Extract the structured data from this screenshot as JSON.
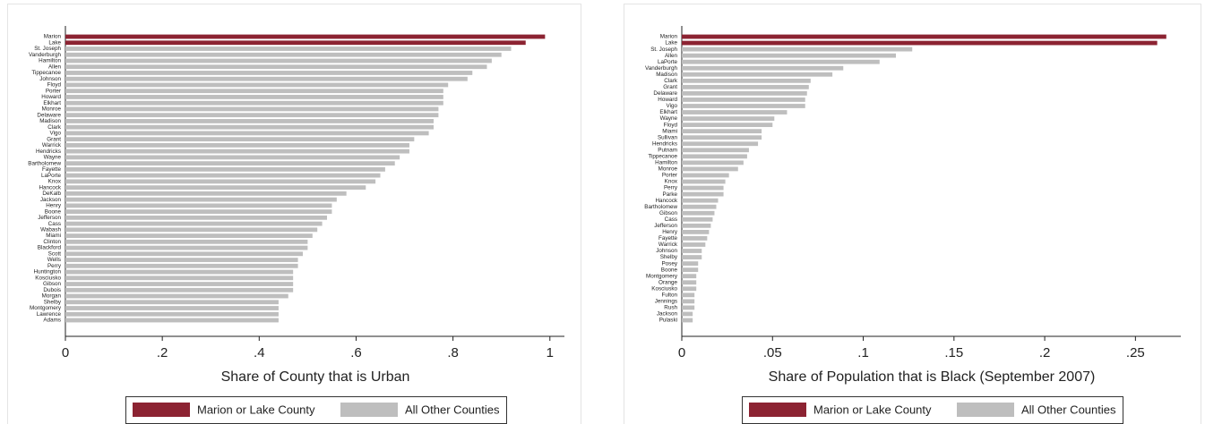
{
  "chart_data": [
    {
      "type": "hbar",
      "xlabel": "Share of County that is Urban",
      "categories": [
        "Marion",
        "Lake",
        "St. Joseph",
        "Vanderburgh",
        "Hamilton",
        "Allen",
        "Tippecanoe",
        "Johnson",
        "Floyd",
        "Porter",
        "Howard",
        "Elkhart",
        "Monroe",
        "Delaware",
        "Madison",
        "Clark",
        "Vigo",
        "Grant",
        "Warrick",
        "Hendricks",
        "Wayne",
        "Bartholomew",
        "Fayette",
        "LaPorte",
        "Knox",
        "Hancock",
        "DeKalb",
        "Jackson",
        "Henry",
        "Boone",
        "Jefferson",
        "Cass",
        "Wabash",
        "Miami",
        "Clinton",
        "Blackford",
        "Scott",
        "Wells",
        "Perry",
        "Huntington",
        "Kosciusko",
        "Gibson",
        "Dubois",
        "Morgan",
        "Shelby",
        "Montgomery",
        "Lawrence",
        "Adams"
      ],
      "series": [
        {
          "name": "Marion or Lake County",
          "color": "#8c2332",
          "values": [
            0.99,
            0.95,
            null,
            null,
            null,
            null,
            null,
            null,
            null,
            null,
            null,
            null,
            null,
            null,
            null,
            null,
            null,
            null,
            null,
            null,
            null,
            null,
            null,
            null,
            null,
            null,
            null,
            null,
            null,
            null,
            null,
            null,
            null,
            null,
            null,
            null,
            null,
            null,
            null,
            null,
            null,
            null,
            null,
            null,
            null,
            null,
            null,
            null
          ]
        },
        {
          "name": "All Other Counties",
          "color": "#bebebe",
          "values": [
            null,
            null,
            0.92,
            0.9,
            0.88,
            0.87,
            0.84,
            0.83,
            0.79,
            0.78,
            0.78,
            0.78,
            0.77,
            0.77,
            0.76,
            0.76,
            0.75,
            0.72,
            0.71,
            0.71,
            0.69,
            0.68,
            0.66,
            0.65,
            0.64,
            0.62,
            0.58,
            0.56,
            0.55,
            0.55,
            0.54,
            0.53,
            0.52,
            0.51,
            0.5,
            0.5,
            0.49,
            0.48,
            0.48,
            0.47,
            0.47,
            0.47,
            0.47,
            0.46,
            0.44,
            0.44,
            0.44,
            0.44
          ]
        }
      ],
      "xlim": [
        0,
        1.03
      ],
      "xticks": [
        0,
        {
          "value": 0.2,
          "label": ".2"
        },
        {
          "value": 0.4,
          "label": ".4"
        },
        {
          "value": 0.6,
          "label": ".6"
        },
        {
          "value": 0.8,
          "label": ".8"
        },
        1
      ]
    },
    {
      "type": "hbar",
      "xlabel": "Share of Population that is Black (September 2007)",
      "categories": [
        "Marion",
        "Lake",
        "St. Joseph",
        "Allen",
        "LaPorte",
        "Vanderburgh",
        "Madison",
        "Clark",
        "Grant",
        "Delaware",
        "Howard",
        "Vigo",
        "Elkhart",
        "Wayne",
        "Floyd",
        "Miami",
        "Sullivan",
        "Hendricks",
        "Putnam",
        "Tippecanoe",
        "Hamilton",
        "Monroe",
        "Porter",
        "Knox",
        "Perry",
        "Parke",
        "Hancock",
        "Bartholomew",
        "Gibson",
        "Cass",
        "Jefferson",
        "Henry",
        "Fayette",
        "Warrick",
        "Johnson",
        "Shelby",
        "Posey",
        "Boone",
        "Montgomery",
        "Orange",
        "Kosciusko",
        "Fulton",
        "Jennings",
        "Rush",
        "Jackson",
        "Pulaski"
      ],
      "series": [
        {
          "name": "Marion or Lake County",
          "color": "#8c2332",
          "values": [
            0.267,
            0.262,
            null,
            null,
            null,
            null,
            null,
            null,
            null,
            null,
            null,
            null,
            null,
            null,
            null,
            null,
            null,
            null,
            null,
            null,
            null,
            null,
            null,
            null,
            null,
            null,
            null,
            null,
            null,
            null,
            null,
            null,
            null,
            null,
            null,
            null,
            null,
            null,
            null,
            null,
            null,
            null,
            null,
            null,
            null,
            null
          ]
        },
        {
          "name": "All Other Counties",
          "color": "#bebebe",
          "values": [
            null,
            null,
            0.127,
            0.118,
            0.109,
            0.089,
            0.083,
            0.071,
            0.07,
            0.069,
            0.068,
            0.068,
            0.058,
            0.051,
            0.05,
            0.044,
            0.044,
            0.042,
            0.037,
            0.036,
            0.034,
            0.031,
            0.026,
            0.024,
            0.023,
            0.023,
            0.02,
            0.019,
            0.018,
            0.017,
            0.016,
            0.015,
            0.014,
            0.013,
            0.011,
            0.011,
            0.009,
            0.009,
            0.008,
            0.008,
            0.008,
            0.007,
            0.007,
            0.007,
            0.006,
            0.006
          ]
        }
      ],
      "xlim": [
        0,
        0.275
      ],
      "xticks": [
        0,
        {
          "value": 0.05,
          "label": ".05"
        },
        {
          "value": 0.1,
          "label": ".1"
        },
        {
          "value": 0.15,
          "label": ".15"
        },
        {
          "value": 0.2,
          "label": ".2"
        },
        {
          "value": 0.25,
          "label": ".25"
        }
      ]
    }
  ]
}
